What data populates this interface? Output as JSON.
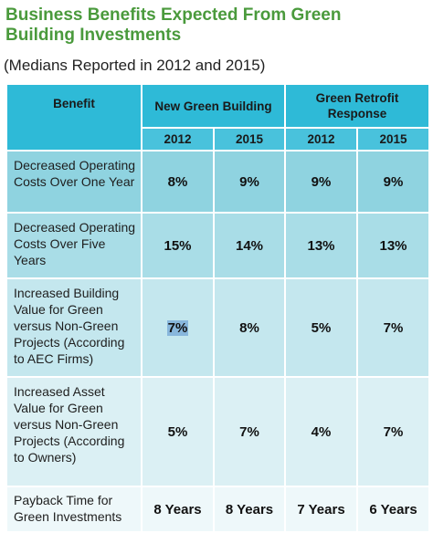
{
  "title": "Business Benefits Expected From Green Building Investments",
  "subtitle": "(Medians Reported in 2012 and 2015)",
  "table": {
    "benefit_header": "Benefit",
    "groups": [
      "New Green Building",
      "Green Retrofit Response"
    ],
    "years": [
      "2012",
      "2015",
      "2012",
      "2015"
    ],
    "rows": [
      {
        "label": "Decreased Operating Costs Over One Year",
        "values": [
          "8%",
          "9%",
          "9%",
          "9%"
        ]
      },
      {
        "label": "Decreased Operating Costs Over Five Years",
        "values": [
          "15%",
          "14%",
          "13%",
          "13%"
        ]
      },
      {
        "label": "Increased Building Value for Green versus Non-Green Projects (According to AEC Firms)",
        "values": [
          "7%",
          "8%",
          "5%",
          "7%"
        ]
      },
      {
        "label": "Increased Asset Value for Green versus Non-Green Projects (According to Owners)",
        "values": [
          "5%",
          "7%",
          "4%",
          "7%"
        ]
      },
      {
        "label": "Payback Time for Green Investments",
        "values": [
          "8 Years",
          "8 Years",
          "7 Years",
          "6 Years"
        ]
      }
    ]
  },
  "colors": {
    "title": "#4a9a3c",
    "header": "#2ebad7",
    "row1": "#8fd3e0",
    "row5": "#eef8fa",
    "selection": "#88b7dc"
  }
}
